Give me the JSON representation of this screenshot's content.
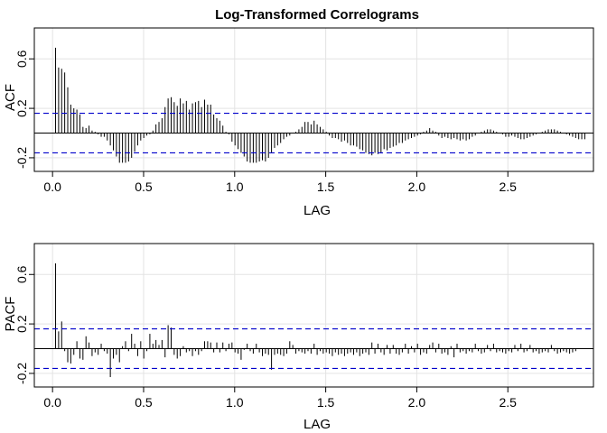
{
  "title": "Log-Transformed Correlograms",
  "chart_data": [
    {
      "type": "bar",
      "name": "acf-panel",
      "ylabel": "ACF",
      "xlabel": "LAG",
      "xlim": [
        -0.1,
        2.97
      ],
      "ylim": [
        -0.31,
        0.85
      ],
      "x_ticks": [
        0.0,
        0.5,
        1.0,
        1.5,
        2.0,
        2.5
      ],
      "x_tick_labels": [
        "0.0",
        "0.5",
        "1.0",
        "1.5",
        "2.0",
        "2.5"
      ],
      "y_ticks": [
        -0.2,
        0.2,
        0.6
      ],
      "y_tick_labels": [
        "-0.2",
        "0.2",
        "0.6"
      ],
      "ci": 0.16,
      "grid": true,
      "lag_step": 0.0167,
      "values": [
        0.69,
        0.53,
        0.52,
        0.49,
        0.37,
        0.23,
        0.2,
        0.19,
        0.15,
        0.05,
        0.04,
        0.06,
        0.02,
        0.01,
        -0.01,
        -0.03,
        -0.03,
        -0.06,
        -0.1,
        -0.14,
        -0.19,
        -0.24,
        -0.24,
        -0.24,
        -0.23,
        -0.2,
        -0.15,
        -0.1,
        -0.06,
        -0.04,
        -0.02,
        -0.01,
        0.02,
        0.07,
        0.09,
        0.12,
        0.21,
        0.28,
        0.29,
        0.25,
        0.22,
        0.28,
        0.24,
        0.26,
        0.19,
        0.24,
        0.25,
        0.26,
        0.21,
        0.27,
        0.23,
        0.23,
        0.15,
        0.12,
        0.1,
        0.06,
        0.01,
        -0.01,
        -0.07,
        -0.1,
        -0.13,
        -0.16,
        -0.19,
        -0.23,
        -0.24,
        -0.24,
        -0.24,
        -0.23,
        -0.22,
        -0.23,
        -0.2,
        -0.16,
        -0.12,
        -0.1,
        -0.08,
        -0.05,
        -0.03,
        -0.02,
        0.0,
        0.01,
        0.03,
        0.05,
        0.09,
        0.09,
        0.07,
        0.1,
        0.07,
        0.05,
        0.03,
        0.01,
        -0.02,
        -0.04,
        -0.04,
        -0.05,
        -0.07,
        -0.06,
        -0.08,
        -0.1,
        -0.1,
        -0.11,
        -0.13,
        -0.14,
        -0.16,
        -0.17,
        -0.18,
        -0.16,
        -0.17,
        -0.16,
        -0.13,
        -0.14,
        -0.12,
        -0.11,
        -0.1,
        -0.08,
        -0.08,
        -0.06,
        -0.05,
        -0.04,
        -0.03,
        -0.02,
        -0.01,
        0.01,
        0.02,
        0.04,
        0.02,
        0.01,
        -0.02,
        -0.04,
        -0.03,
        -0.04,
        -0.05,
        -0.04,
        -0.05,
        -0.06,
        -0.05,
        -0.06,
        -0.05,
        -0.03,
        -0.02,
        0.0,
        0.01,
        0.02,
        0.03,
        0.03,
        0.02,
        0.01,
        0.0,
        -0.01,
        -0.03,
        -0.03,
        -0.02,
        -0.03,
        -0.04,
        -0.05,
        -0.05,
        -0.04,
        -0.03,
        -0.02,
        -0.01,
        0.0,
        0.01,
        0.02,
        0.03,
        0.03,
        0.03,
        0.02,
        0.01,
        0.0,
        -0.01,
        -0.02,
        -0.03,
        -0.04,
        -0.05,
        -0.05,
        -0.05
      ]
    },
    {
      "type": "bar",
      "name": "pacf-panel",
      "ylabel": "PACF",
      "xlabel": "LAG",
      "xlim": [
        -0.1,
        2.97
      ],
      "ylim": [
        -0.31,
        0.85
      ],
      "x_ticks": [
        0.0,
        0.5,
        1.0,
        1.5,
        2.0,
        2.5
      ],
      "x_tick_labels": [
        "0.0",
        "0.5",
        "1.0",
        "1.5",
        "2.0",
        "2.5"
      ],
      "y_ticks": [
        -0.2,
        0.2,
        0.6
      ],
      "y_tick_labels": [
        "-0.2",
        "0.2",
        "0.6"
      ],
      "ci": 0.16,
      "grid": true,
      "lag_step": 0.0167,
      "values": [
        0.69,
        0.14,
        0.22,
        -0.02,
        -0.11,
        -0.12,
        -0.05,
        0.06,
        -0.08,
        -0.09,
        0.1,
        0.05,
        -0.06,
        -0.03,
        -0.05,
        0.04,
        -0.02,
        -0.04,
        -0.23,
        -0.08,
        -0.05,
        -0.11,
        0.02,
        0.06,
        -0.02,
        0.12,
        0.04,
        -0.06,
        0.06,
        -0.08,
        -0.02,
        0.12,
        0.04,
        0.07,
        0.03,
        0.07,
        -0.07,
        0.19,
        0.17,
        -0.05,
        -0.08,
        -0.06,
        0.02,
        -0.03,
        -0.02,
        -0.06,
        -0.02,
        -0.05,
        -0.02,
        0.06,
        0.06,
        0.05,
        -0.03,
        0.05,
        -0.03,
        0.05,
        -0.02,
        0.04,
        0.05,
        -0.03,
        -0.04,
        -0.09,
        -0.01,
        0.04,
        -0.02,
        -0.04,
        0.04,
        -0.03,
        -0.06,
        -0.04,
        -0.05,
        -0.17,
        -0.05,
        -0.04,
        -0.05,
        -0.06,
        -0.04,
        0.06,
        0.03,
        -0.04,
        -0.02,
        -0.03,
        -0.04,
        -0.02,
        -0.04,
        0.04,
        -0.05,
        -0.02,
        -0.04,
        -0.03,
        -0.04,
        -0.06,
        -0.03,
        -0.05,
        -0.04,
        -0.06,
        -0.04,
        -0.03,
        -0.05,
        -0.03,
        -0.06,
        -0.04,
        -0.03,
        -0.05,
        0.05,
        -0.04,
        0.04,
        -0.03,
        -0.05,
        0.03,
        -0.04,
        0.03,
        -0.04,
        -0.05,
        -0.03,
        0.04,
        -0.04,
        0.02,
        -0.03,
        0.04,
        -0.05,
        -0.03,
        -0.04,
        0.03,
        0.05,
        -0.03,
        0.04,
        -0.04,
        -0.03,
        -0.05,
        0.02,
        -0.07,
        0.04,
        -0.03,
        -0.02,
        -0.04,
        -0.02,
        -0.03,
        0.04,
        -0.02,
        -0.04,
        -0.03,
        0.03,
        -0.02,
        0.04,
        -0.03,
        -0.02,
        -0.03,
        -0.04,
        -0.02,
        -0.03,
        0.03,
        -0.02,
        0.04,
        -0.03,
        -0.02,
        0.03,
        -0.03,
        -0.02,
        -0.04,
        -0.03,
        -0.02,
        -0.03,
        0.03,
        -0.02,
        -0.04,
        -0.03,
        -0.02,
        -0.03,
        -0.04,
        -0.03,
        -0.02
      ]
    }
  ]
}
